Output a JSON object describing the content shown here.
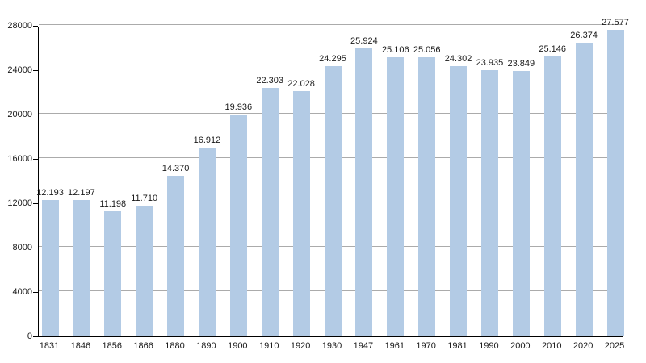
{
  "chart_data": {
    "type": "bar",
    "title": "",
    "xlabel": "",
    "ylabel": "",
    "categories": [
      "1831",
      "1846",
      "1856",
      "1866",
      "1880",
      "1890",
      "1900",
      "1910",
      "1920",
      "1930",
      "1947",
      "1961",
      "1970",
      "1981",
      "1990",
      "2000",
      "2010",
      "2020",
      "2025"
    ],
    "values": [
      12193,
      12197,
      11198,
      11710,
      14370,
      16912,
      19936,
      22303,
      22028,
      24295,
      25924,
      25106,
      25056,
      24302,
      23935,
      23849,
      25146,
      26374,
      27577
    ],
    "value_labels": [
      "12.193",
      "12.197",
      "11.198",
      "11.710",
      "14.370",
      "16.912",
      "19.936",
      "22.303",
      "22.028",
      "24.295",
      "25.924",
      "25.106",
      "25.056",
      "24.302",
      "23.935",
      "23.849",
      "25.146",
      "26.374",
      "27.577"
    ],
    "yticks": [
      "0",
      "4000",
      "8000",
      "12000",
      "16000",
      "20000",
      "24000",
      "28000"
    ],
    "ylim": [
      0,
      28000
    ],
    "grid": true,
    "legend": null,
    "colors": {
      "bar": "#b3cbe5",
      "grid": "#ababab",
      "axis": "#000000",
      "text": "#1a1a1a",
      "background": "#ffffff"
    }
  }
}
